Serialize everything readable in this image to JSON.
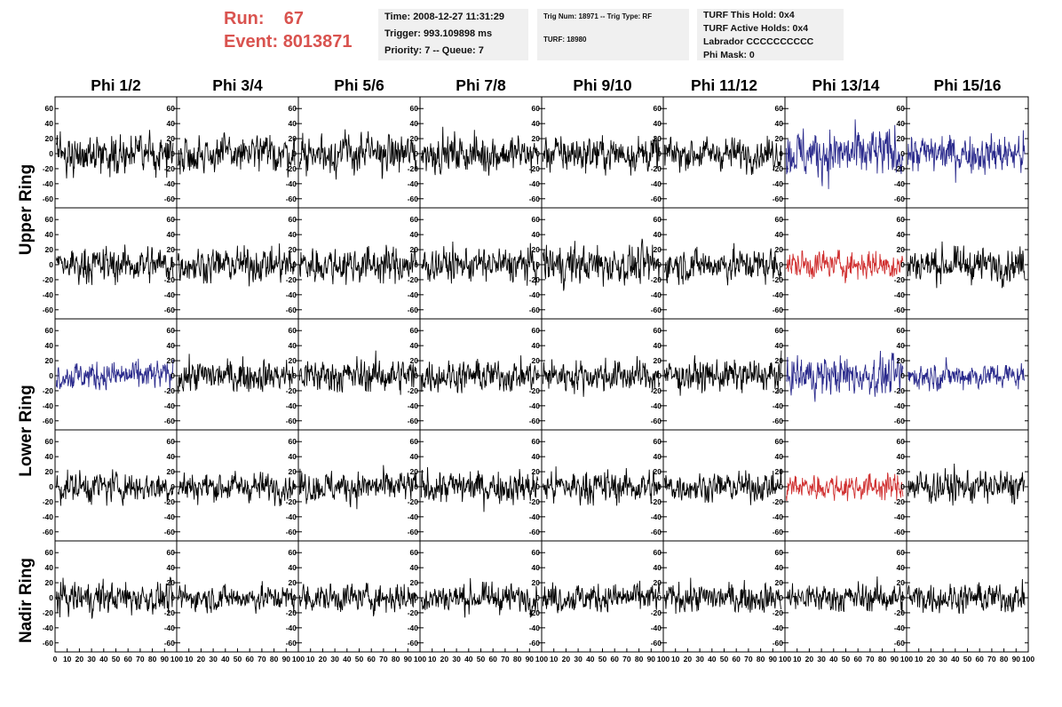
{
  "header": {
    "run_label": "Run:",
    "run_value": "67",
    "event_label": "Event:",
    "event_value": "8013871"
  },
  "time_box": {
    "time": "Time: 2008-12-27 11:31:29",
    "trigger": "Trigger: 993.109898 ms",
    "priority": "Priority: 7 -- Queue: 7"
  },
  "trig_box": {
    "trig_line": "Trig Num: 18971 -- Trig Type: RF",
    "turf_line": "TURF: 18980"
  },
  "turf_box": {
    "hold": "TURF This Hold: 0x4",
    "active": "TURF Active Holds: 0x4",
    "labrador": "Labrador CCCCCCCCCC",
    "phi_mask": "Phi Mask: 0"
  },
  "columns": [
    "Phi 1/2",
    "Phi 3/4",
    "Phi 5/6",
    "Phi 7/8",
    "Phi 9/10",
    "Phi 11/12",
    "Phi 13/14",
    "Phi 15/16"
  ],
  "ring_labels": [
    "Upper Ring",
    "Lower Ring",
    "Nadir Ring"
  ],
  "colors": {
    "normal": "#000000",
    "blue": "#2a2a8c",
    "red": "#d03030"
  },
  "chart_data": {
    "type": "line",
    "grid": false,
    "xlim": [
      0,
      100
    ],
    "ylim": [
      -65,
      65
    ],
    "x_ticks": [
      0,
      10,
      20,
      30,
      40,
      50,
      60,
      70,
      80,
      90,
      100
    ],
    "x_tick_labels_first": [
      "0",
      "10",
      "20",
      "30",
      "40",
      "50",
      "60",
      "70",
      "80",
      "90",
      "100"
    ],
    "x_tick_labels_other": [
      "10",
      "20",
      "30",
      "40",
      "50",
      "60",
      "70",
      "80",
      "90",
      "100"
    ],
    "y_ticks": [
      -60,
      -40,
      -20,
      0,
      20,
      40,
      60
    ],
    "y_tick_labels": [
      "-60",
      "-40",
      "-20",
      "0",
      "20",
      "40",
      "60"
    ],
    "rows": 5,
    "cols": 8,
    "samples_per_trace": 260,
    "amplitudes": [
      [
        14,
        14,
        15,
        14,
        14,
        12,
        19,
        15
      ],
      [
        14,
        13,
        14,
        13,
        15,
        13,
        11,
        13
      ],
      [
        11,
        12,
        13,
        12,
        12,
        12,
        15,
        10
      ],
      [
        12,
        11,
        12,
        13,
        13,
        11,
        10,
        13
      ],
      [
        12,
        10,
        11,
        11,
        11,
        11,
        11,
        11
      ]
    ],
    "trace_colors": [
      [
        "normal",
        "normal",
        "normal",
        "normal",
        "normal",
        "normal",
        "blue",
        "blue"
      ],
      [
        "normal",
        "normal",
        "normal",
        "normal",
        "normal",
        "normal",
        "red",
        "normal"
      ],
      [
        "blue",
        "normal",
        "normal",
        "normal",
        "normal",
        "normal",
        "blue",
        "blue"
      ],
      [
        "normal",
        "normal",
        "normal",
        "normal",
        "normal",
        "normal",
        "red",
        "normal"
      ],
      [
        "normal",
        "normal",
        "normal",
        "normal",
        "normal",
        "normal",
        "normal",
        "normal"
      ]
    ]
  }
}
